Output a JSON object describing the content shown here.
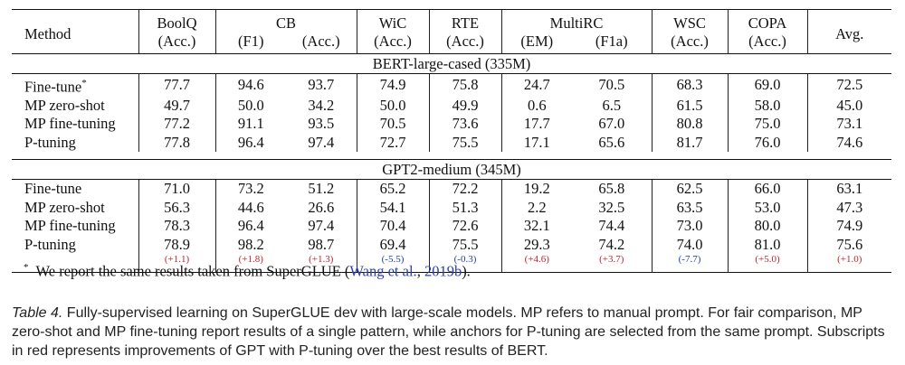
{
  "table": {
    "method_header": "Method",
    "avg_header": "Avg.",
    "columns": [
      {
        "name": "BoolQ",
        "subs": [
          "(Acc.)"
        ]
      },
      {
        "name": "CB",
        "subs": [
          "(F1)",
          "(Acc.)"
        ]
      },
      {
        "name": "WiC",
        "subs": [
          "(Acc.)"
        ]
      },
      {
        "name": "RTE",
        "subs": [
          "(Acc.)"
        ]
      },
      {
        "name": "MultiRC",
        "subs": [
          "(EM)",
          "(F1a)"
        ]
      },
      {
        "name": "WSC",
        "subs": [
          "(Acc.)"
        ]
      },
      {
        "name": "COPA",
        "subs": [
          "(Acc.)"
        ]
      }
    ],
    "sections": [
      {
        "title": "BERT-large-cased (335M)",
        "rows": [
          {
            "method": "Fine-tune",
            "method_mark": "*",
            "values": [
              "77.7",
              "94.6",
              "93.7",
              "74.9",
              "75.8",
              "24.7",
              "70.5",
              "68.3",
              "69.0",
              "72.5"
            ]
          },
          {
            "method": "MP zero-shot",
            "values": [
              "49.7",
              "50.0",
              "34.2",
              "50.0",
              "49.9",
              "0.6",
              "6.5",
              "61.5",
              "58.0",
              "45.0"
            ]
          },
          {
            "method": "MP fine-tuning",
            "values": [
              "77.2",
              "91.1",
              "93.5",
              "70.5",
              "73.6",
              "17.7",
              "67.0",
              "80.8",
              "75.0",
              "73.1"
            ]
          },
          {
            "method": "P-tuning",
            "values": [
              "77.8",
              "96.4",
              "97.4",
              "72.7",
              "75.5",
              "17.1",
              "65.6",
              "81.7",
              "76.0",
              "74.6"
            ]
          }
        ]
      },
      {
        "title": "GPT2-medium (345M)",
        "rows": [
          {
            "method": "Fine-tune",
            "values": [
              "71.0",
              "73.2",
              "51.2",
              "65.2",
              "72.2",
              "19.2",
              "65.8",
              "62.5",
              "66.0",
              "63.1"
            ]
          },
          {
            "method": "MP zero-shot",
            "values": [
              "56.3",
              "44.6",
              "26.6",
              "54.1",
              "51.3",
              "2.2",
              "32.5",
              "63.5",
              "53.0",
              "47.3"
            ]
          },
          {
            "method": "MP fine-tuning",
            "values": [
              "78.3",
              "96.4",
              "97.4",
              "70.4",
              "72.6",
              "32.1",
              "74.4",
              "73.0",
              "80.0",
              "74.9"
            ]
          },
          {
            "method": "P-tuning",
            "values": [
              "78.9",
              "98.2",
              "98.7",
              "69.4",
              "75.5",
              "29.3",
              "74.2",
              "74.0",
              "81.0",
              "75.6"
            ]
          }
        ],
        "deltas": [
          "(+1.1)",
          "(+1.8)",
          "(+1.3)",
          "(-5.5)",
          "(-0.3)",
          "(+4.6)",
          "(+3.7)",
          "(-7.7)",
          "(+5.0)",
          "(+1.0)"
        ]
      }
    ],
    "colors": {
      "positive": "#c0262d",
      "negative": "#1f3fae"
    }
  },
  "footnote": {
    "mark": "*",
    "text": "We report the same results taken from SuperGLUE (",
    "cite_author": "Wang et al.",
    "cite_sep": ", ",
    "cite_year": "2019b",
    "end": ")."
  },
  "caption": {
    "label": "Table 4.",
    "text": " Fully-supervised learning on SuperGLUE dev with large-scale models. MP refers to manual prompt. For fair comparison, MP zero-shot and MP fine-tuning report results of a single pattern, while anchors for P-tuning are selected from the same prompt. Subscripts in red represents improvements of GPT with P-tuning over the best results of BERT."
  }
}
